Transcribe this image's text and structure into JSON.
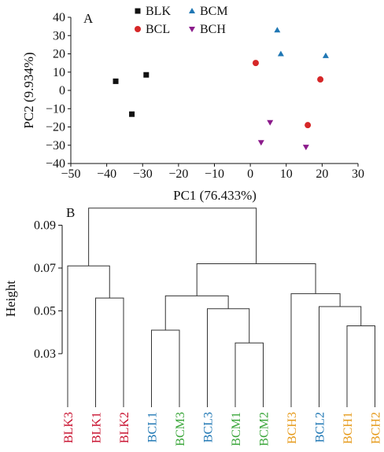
{
  "chart_data": [
    {
      "type": "scatter",
      "panel_label": "A",
      "xlabel": "PC1 (76.433%)",
      "ylabel": "PC2 (9.934%)",
      "xlim": [
        -50,
        30
      ],
      "ylim": [
        -40,
        40
      ],
      "xticks": [
        -50,
        -40,
        -30,
        -20,
        -10,
        0,
        10,
        20,
        30
      ],
      "yticks": [
        -40,
        -30,
        -20,
        -10,
        0,
        10,
        20,
        30,
        40
      ],
      "legend_placement": "top",
      "series": [
        {
          "name": "BLK",
          "marker": "square",
          "color": "#111111",
          "points": [
            [
              -37.5,
              5
            ],
            [
              -29,
              8.5
            ],
            [
              -33,
              -13
            ]
          ]
        },
        {
          "name": "BCM",
          "marker": "triangle-up",
          "color": "#1f77b4",
          "points": [
            [
              7.5,
              33
            ],
            [
              8.5,
              20
            ],
            [
              21,
              19
            ]
          ]
        },
        {
          "name": "BCL",
          "marker": "circle",
          "color": "#d62728",
          "points": [
            [
              1.5,
              15
            ],
            [
              19.5,
              6
            ],
            [
              16,
              -19
            ]
          ]
        },
        {
          "name": "BCH",
          "marker": "triangle-down",
          "color": "#8b1a8b",
          "points": [
            [
              5.5,
              -17.5
            ],
            [
              3,
              -28.5
            ],
            [
              15.5,
              -31
            ]
          ]
        }
      ]
    },
    {
      "type": "dendrogram",
      "panel_label": "B",
      "ylabel": "Height",
      "ylim": [
        0.005,
        0.099
      ],
      "yticks": [
        0.03,
        0.05,
        0.07,
        0.09
      ],
      "leaves": [
        {
          "label": "BLK3",
          "color": "#c8102e"
        },
        {
          "label": "BLK1",
          "color": "#c8102e"
        },
        {
          "label": "BLK2",
          "color": "#c8102e"
        },
        {
          "label": "BCL1",
          "color": "#1f77b4"
        },
        {
          "label": "BCM3",
          "color": "#3aa63a"
        },
        {
          "label": "BCL3",
          "color": "#1f77b4"
        },
        {
          "label": "BCM1",
          "color": "#3aa63a"
        },
        {
          "label": "BCM2",
          "color": "#3aa63a"
        },
        {
          "label": "BCH3",
          "color": "#e69a1a"
        },
        {
          "label": "BCL2",
          "color": "#1f77b4"
        },
        {
          "label": "BCH1",
          "color": "#e69a1a"
        },
        {
          "label": "BCH2",
          "color": "#e69a1a"
        }
      ],
      "merges": [
        {
          "left": "L1",
          "right": "L2",
          "height": 0.056
        },
        {
          "left": "L0",
          "right": "N0",
          "height": 0.071
        },
        {
          "left": "L3",
          "right": "L4",
          "height": 0.041
        },
        {
          "left": "L6",
          "right": "L7",
          "height": 0.035
        },
        {
          "left": "L5",
          "right": "N3",
          "height": 0.051
        },
        {
          "left": "N2",
          "right": "N4",
          "height": 0.057
        },
        {
          "left": "L10",
          "right": "L11",
          "height": 0.043
        },
        {
          "left": "L9",
          "right": "N6",
          "height": 0.052
        },
        {
          "left": "L8",
          "right": "N7",
          "height": 0.058
        },
        {
          "left": "N5",
          "right": "N8",
          "height": 0.072
        },
        {
          "left": "N1",
          "right": "N9",
          "height": 0.098
        }
      ]
    }
  ]
}
